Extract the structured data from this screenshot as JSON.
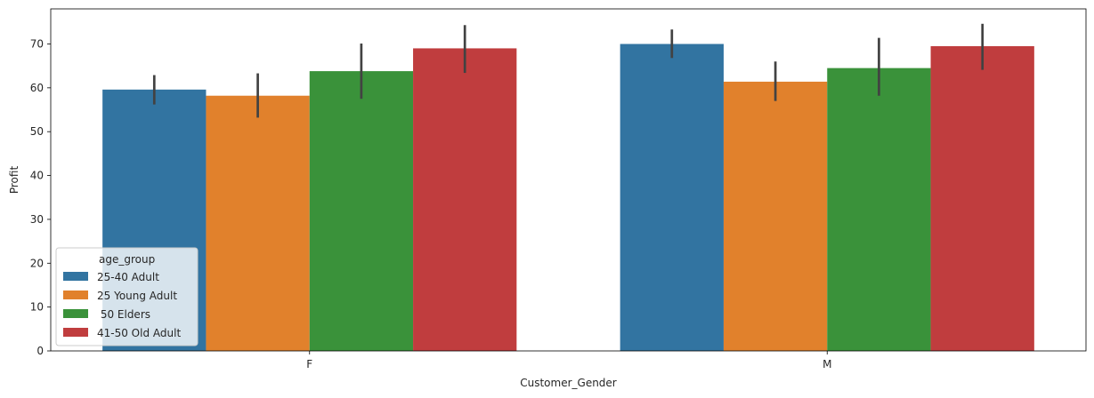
{
  "chart_data": {
    "type": "bar",
    "title": "",
    "xlabel": "Customer_Gender",
    "ylabel": "Profit",
    "categories": [
      "F",
      "M"
    ],
    "ylim": [
      0,
      78
    ],
    "yticks": [
      0,
      10,
      20,
      30,
      40,
      50,
      60,
      70
    ],
    "grid": false,
    "legend": {
      "title": "age_group",
      "placement": "lower-left"
    },
    "series": [
      {
        "name": "25-40 Adult",
        "color": "#3274a1",
        "values": [
          59.6,
          70.0
        ],
        "err_low": [
          56.2,
          66.8
        ],
        "err_high": [
          62.9,
          73.3
        ]
      },
      {
        "name": "25 Young Adult",
        "color": "#e1812c",
        "values": [
          58.2,
          61.4
        ],
        "err_low": [
          53.2,
          57.0
        ],
        "err_high": [
          63.3,
          66.0
        ]
      },
      {
        "name": " 50 Elders",
        "color": "#3a923a",
        "values": [
          63.8,
          64.5
        ],
        "err_low": [
          57.5,
          58.2
        ],
        "err_high": [
          70.1,
          71.4
        ]
      },
      {
        "name": "41-50 Old Adult",
        "color": "#c03d3e",
        "values": [
          69.0,
          69.5
        ],
        "err_low": [
          63.4,
          64.1
        ],
        "err_high": [
          74.3,
          74.6
        ]
      }
    ]
  }
}
